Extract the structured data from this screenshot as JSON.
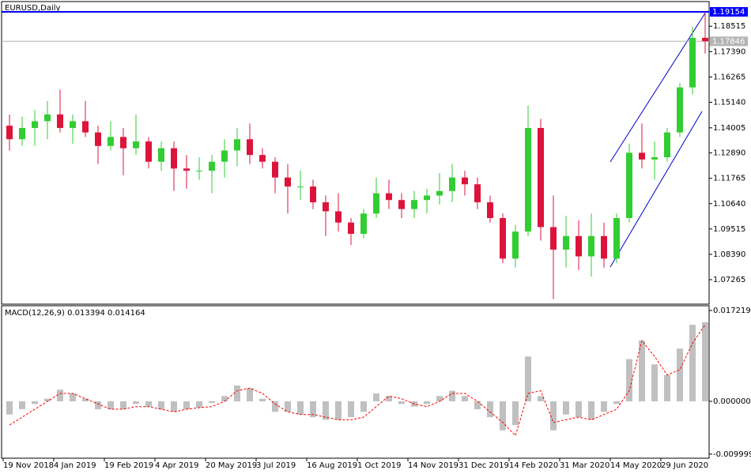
{
  "chart_data": [
    {
      "type": "candlestick",
      "title": "EURUSD,Daily",
      "categories": [
        "19 Nov 2018",
        null,
        null,
        null,
        "4 Jan 2019",
        null,
        null,
        null,
        "19 Feb 2019",
        null,
        null,
        null,
        "4 Apr 2019",
        null,
        null,
        null,
        "20 May 2019",
        null,
        null,
        null,
        "3 Jul 2019",
        null,
        null,
        null,
        "16 Aug 2019",
        null,
        null,
        null,
        "1 Oct 2019",
        null,
        null,
        null,
        "14 Nov 2019",
        null,
        null,
        null,
        "31 Dec 2019",
        null,
        null,
        null,
        "14 Feb 2020",
        null,
        null,
        null,
        "31 Mar 2020",
        null,
        null,
        null,
        "14 May 2020",
        null,
        null,
        null,
        "29 Jun 2020",
        null,
        null,
        null
      ],
      "open": [
        1.141,
        1.135,
        1.14,
        1.143,
        1.146,
        1.14,
        1.143,
        1.138,
        1.132,
        1.136,
        1.131,
        1.134,
        1.125,
        1.131,
        1.122,
        1.121,
        1.121,
        1.125,
        1.13,
        1.135,
        1.128,
        1.125,
        1.118,
        1.114,
        1.114,
        1.107,
        1.103,
        1.098,
        1.093,
        1.102,
        1.111,
        1.108,
        1.104,
        1.108,
        1.11,
        1.112,
        1.118,
        1.115,
        1.107,
        1.1,
        1.082,
        1.094,
        1.14,
        1.096,
        1.086,
        1.092,
        1.083,
        1.092,
        1.082,
        1.1,
        1.129,
        1.126,
        1.127,
        1.138,
        1.158,
        1.18
      ],
      "high": [
        1.146,
        1.145,
        1.148,
        1.152,
        1.157,
        1.146,
        1.152,
        1.141,
        1.143,
        1.14,
        1.146,
        1.136,
        1.134,
        1.134,
        1.128,
        1.127,
        1.128,
        1.135,
        1.14,
        1.142,
        1.131,
        1.127,
        1.124,
        1.121,
        1.117,
        1.11,
        1.111,
        1.1,
        1.104,
        1.118,
        1.117,
        1.111,
        1.112,
        1.113,
        1.12,
        1.124,
        1.121,
        1.118,
        1.11,
        1.102,
        1.097,
        1.15,
        1.144,
        1.11,
        1.101,
        1.099,
        1.102,
        1.098,
        1.102,
        1.133,
        1.142,
        1.134,
        1.14,
        1.16,
        1.185,
        1.1915
      ],
      "low": [
        1.13,
        1.132,
        1.132,
        1.135,
        1.138,
        1.133,
        1.136,
        1.124,
        1.13,
        1.119,
        1.128,
        1.122,
        1.121,
        1.112,
        1.113,
        1.117,
        1.111,
        1.118,
        1.123,
        1.124,
        1.122,
        1.111,
        1.102,
        1.108,
        1.104,
        1.092,
        1.094,
        1.088,
        1.091,
        1.1,
        1.104,
        1.1,
        1.1,
        1.102,
        1.106,
        1.107,
        1.11,
        1.104,
        1.098,
        1.08,
        1.078,
        1.092,
        1.09,
        1.064,
        1.078,
        1.077,
        1.074,
        1.078,
        1.08,
        1.098,
        1.122,
        1.117,
        1.125,
        1.136,
        1.155,
        1.173
      ],
      "close": [
        1.135,
        1.14,
        1.143,
        1.146,
        1.14,
        1.143,
        1.138,
        1.132,
        1.136,
        1.131,
        1.134,
        1.125,
        1.131,
        1.122,
        1.121,
        1.121,
        1.125,
        1.13,
        1.135,
        1.128,
        1.125,
        1.118,
        1.114,
        1.114,
        1.107,
        1.103,
        1.098,
        1.093,
        1.102,
        1.111,
        1.108,
        1.104,
        1.108,
        1.11,
        1.112,
        1.118,
        1.115,
        1.107,
        1.1,
        1.082,
        1.094,
        1.14,
        1.096,
        1.086,
        1.092,
        1.083,
        1.092,
        1.082,
        1.1,
        1.129,
        1.126,
        1.127,
        1.138,
        1.158,
        1.18,
        1.1785
      ],
      "up_color": "#32cd32",
      "down_color": "#dc143c",
      "ylim": [
        1.06178,
        1.1961
      ],
      "yticks": [
        1.18515,
        {
          "value": 1.1739,
          "label": "1.17390"
        },
        1.16265,
        {
          "value": 1.1514,
          "label": "1.15140"
        },
        1.14005,
        {
          "value": 1.1289,
          "label": "1.12890"
        },
        1.11765,
        {
          "value": 1.1064,
          "label": "1.10640"
        },
        1.09515,
        {
          "value": 1.0839,
          "label": "1.08390"
        },
        1.07265
      ],
      "levels": [
        {
          "value": 1.19154,
          "color": "#0000ff"
        },
        {
          "value": 1.17846,
          "color": "#b4b4b4"
        }
      ]
    },
    {
      "type": "macd",
      "title": "MACD(12,26,9) 0.013394 0.014164",
      "histogram": {
        "color": "#c0c0c0",
        "values": [
          -0.0025,
          -0.0015,
          -0.0005,
          0.0005,
          0.0022,
          0.0015,
          0.0005,
          -0.0015,
          -0.0015,
          -0.0015,
          -0.0005,
          -0.001,
          -0.0015,
          -0.002,
          -0.0015,
          -0.0012,
          -0.0003,
          0.001,
          0.003,
          0.0025,
          0.0005,
          -0.002,
          -0.002,
          -0.0025,
          -0.003,
          -0.0035,
          -0.0035,
          -0.003,
          -0.002,
          0.0015,
          0.001,
          -0.0005,
          -0.001,
          -0.0005,
          0.001,
          0.002,
          0.001,
          -0.0015,
          -0.003,
          -0.0055,
          -0.0045,
          0.0085,
          0.001,
          -0.0055,
          -0.0025,
          -0.003,
          -0.0035,
          -0.002,
          -0.0005,
          0.008,
          0.0115,
          0.007,
          0.005,
          0.01,
          0.0145,
          0.015
        ]
      },
      "signal": {
        "color": "#ff0000",
        "values": [
          -0.0045,
          -0.003,
          -0.0015,
          0,
          0.0015,
          0.0015,
          0.0005,
          -0.0005,
          -0.0015,
          -0.0015,
          -0.001,
          -0.001,
          -0.0015,
          -0.002,
          -0.0015,
          -0.0012,
          -0.001,
          0,
          0.002,
          0.0025,
          0.0015,
          -0.0005,
          -0.002,
          -0.0025,
          -0.0025,
          -0.003,
          -0.0035,
          -0.0035,
          -0.003,
          -0.001,
          0.001,
          0.0005,
          -0.0005,
          -0.001,
          0,
          0.0015,
          0.0015,
          0,
          -0.002,
          -0.004,
          -0.0065,
          0.0015,
          0.002,
          -0.004,
          -0.0035,
          -0.003,
          -0.0035,
          -0.0025,
          -0.0015,
          0.002,
          0.0115,
          0.0085,
          0.005,
          0.006,
          0.011,
          0.0145
        ]
      },
      "ylim": [
        -0.010777,
        0.018117
      ],
      "yticks": [
        0.017219,
        {
          "value": 0,
          "label": "0.000000"
        },
        -0.009999
      ]
    }
  ]
}
